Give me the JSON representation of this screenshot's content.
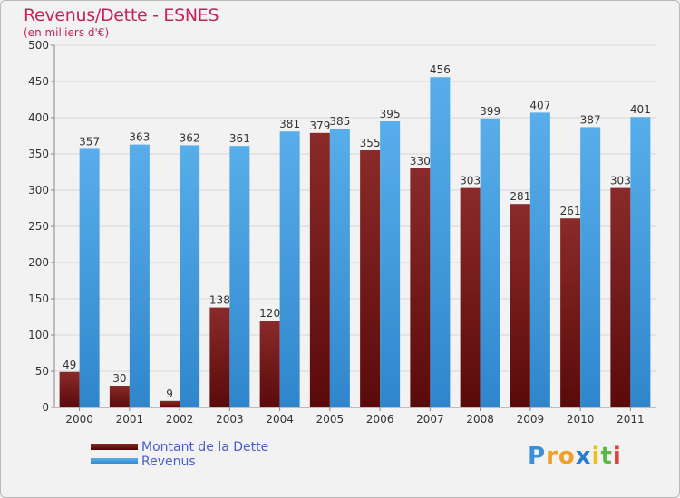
{
  "title": "Revenus/Dette - ESNES",
  "subtitle": "(en milliers d'€)",
  "colors": {
    "dette": "#7a1616",
    "revenus": "#3f9be0",
    "title": "#c0245e"
  },
  "legend": {
    "dette_label": "Montant de la Dette",
    "revenus_label": "Revenus"
  },
  "logo": {
    "letters": [
      "P",
      "r",
      "o",
      "x",
      "i",
      "t",
      "i"
    ],
    "colors": [
      "#3a8fd8",
      "#f0a028",
      "#f0a028",
      "#2a7cd0",
      "#e8c020",
      "#5ab84a",
      "#e04040"
    ]
  },
  "chart_data": {
    "type": "bar",
    "title": "Revenus/Dette - ESNES",
    "subtitle": "(en milliers d'€)",
    "categories": [
      "2000",
      "2001",
      "2002",
      "2003",
      "2004",
      "2005",
      "2006",
      "2007",
      "2008",
      "2009",
      "2010",
      "2011"
    ],
    "series": [
      {
        "name": "Montant de la Dette",
        "values": [
          49,
          30,
          9,
          138,
          120,
          379,
          355,
          330,
          303,
          281,
          261,
          303
        ]
      },
      {
        "name": "Revenus",
        "values": [
          357,
          363,
          362,
          361,
          381,
          385,
          395,
          456,
          399,
          407,
          387,
          401
        ]
      }
    ],
    "ylim": [
      0,
      500
    ],
    "yticks": [
      0,
      50,
      100,
      150,
      200,
      250,
      300,
      350,
      400,
      450,
      500
    ],
    "grid": true,
    "legend_position": "bottom-left"
  }
}
